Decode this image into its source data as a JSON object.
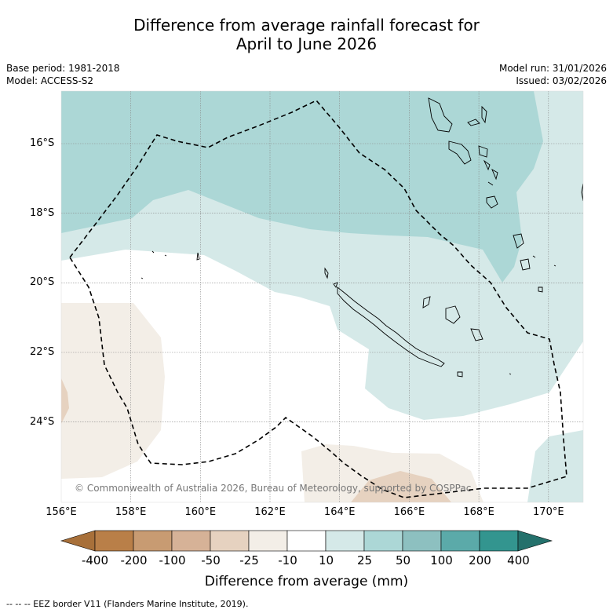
{
  "title_line1": "Difference from average rainfall forecast for",
  "title_line2": "April to June 2026",
  "meta_left": {
    "base_period": "Base period: 1981-2018",
    "model": "Model: ACCESS-S2"
  },
  "meta_right": {
    "model_run": "Model run: 31/01/2026",
    "issued": "Issued: 03/02/2026"
  },
  "map": {
    "lat_ticks": [
      "16°S",
      "18°S",
      "20°S",
      "22°S",
      "24°S"
    ],
    "lon_ticks": [
      "156°E",
      "158°E",
      "160°E",
      "162°E",
      "164°E",
      "166°E",
      "168°E",
      "170°E"
    ],
    "copyright": "© Commonwealth of Australia 2026, Bureau of Meteorology, supported by COSPPac"
  },
  "colorbar": {
    "labels": [
      "-400",
      "-200",
      "-100",
      "-50",
      "-25",
      "-10",
      "10",
      "25",
      "50",
      "100",
      "200",
      "400"
    ],
    "colors": [
      "#a8703a",
      "#b97f48",
      "#c89b72",
      "#d6b297",
      "#e6d2c0",
      "#f3eee7",
      "#ffffff",
      "#d5e9e8",
      "#acd7d6",
      "#8dc0c0",
      "#5baaa9",
      "#33958f",
      "#24716c"
    ],
    "title": "Difference from average (mm)"
  },
  "footnote": "--  --  -- EEZ border V11 (Flanders Marine Institute, 2019)."
}
